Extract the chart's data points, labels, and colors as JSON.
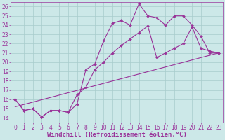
{
  "xlabel": "Windchill (Refroidissement éolien,°C)",
  "bg_color": "#cce8e8",
  "line_color": "#993399",
  "xlim": [
    -0.5,
    23.5
  ],
  "ylim": [
    13.5,
    26.5
  ],
  "xticks": [
    0,
    1,
    2,
    3,
    4,
    5,
    6,
    7,
    8,
    9,
    10,
    11,
    12,
    13,
    14,
    15,
    16,
    17,
    18,
    19,
    20,
    21,
    22,
    23
  ],
  "yticks": [
    14,
    15,
    16,
    17,
    18,
    19,
    20,
    21,
    22,
    23,
    24,
    25,
    26
  ],
  "line1_x": [
    0,
    1,
    2,
    3,
    4,
    5,
    6,
    7,
    8,
    9,
    10,
    11,
    12,
    13,
    14,
    15,
    16,
    17,
    18,
    19,
    20,
    21,
    22,
    23
  ],
  "line1_y": [
    16,
    14.8,
    15,
    14.1,
    14.8,
    14.8,
    14.6,
    15.5,
    19.2,
    19.8,
    22.3,
    24.2,
    24.5,
    24.0,
    26.3,
    25.0,
    24.8,
    24.0,
    25.0,
    25.0,
    24.0,
    22.8,
    21.0,
    21.0
  ],
  "line2_x": [
    0,
    1,
    2,
    3,
    4,
    5,
    6,
    7,
    8,
    9,
    10,
    11,
    12,
    13,
    14,
    15,
    16,
    17,
    18,
    19,
    20,
    21,
    22,
    23
  ],
  "line2_y": [
    16,
    14.8,
    15,
    14.1,
    14.8,
    14.8,
    14.6,
    16.5,
    17.3,
    19.2,
    20.0,
    21.0,
    21.8,
    22.5,
    23.2,
    23.9,
    20.5,
    21.0,
    21.5,
    22.0,
    23.8,
    21.5,
    21.2,
    21.0
  ],
  "line3_x": [
    0,
    23
  ],
  "line3_y": [
    15.2,
    21.0
  ],
  "marker": "D",
  "markersize": 2,
  "linewidth": 0.8,
  "grid_color": "#a8cccc",
  "xlabel_fontsize": 6.5,
  "tick_fontsize": 5.5
}
